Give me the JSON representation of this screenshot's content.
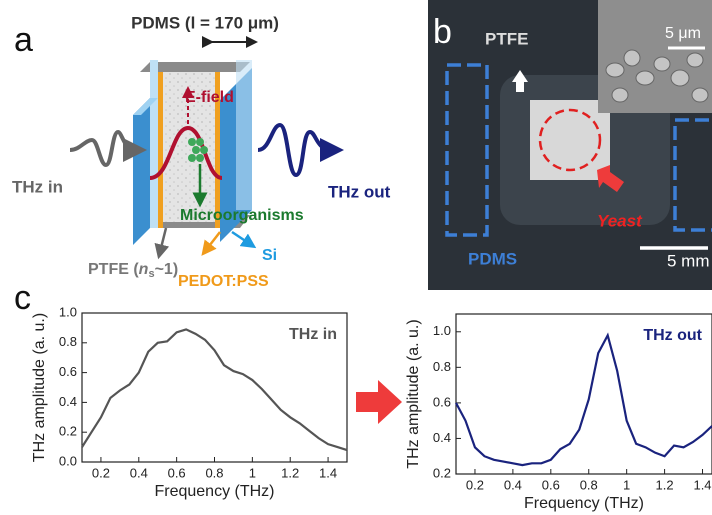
{
  "panel_labels": [
    "a",
    "b",
    "c"
  ],
  "diagram": {
    "pdms": "PDMS (l = 170 μm)",
    "e_field": "E-field",
    "thz_in": "THz in",
    "thz_out": "THz out",
    "microorganisms": "Microorganisms",
    "si": "Si",
    "ptfe": [
      "PTFE (",
      "n",
      "s",
      "~1)"
    ],
    "pedot": "PEDOT:PSS"
  },
  "photo": {
    "ptfe": "PTFE",
    "scale_inset": "5 μm",
    "yeast": "Yeast",
    "pdms": "PDMS",
    "scale": "5 mm"
  },
  "chart_data": [
    {
      "type": "line",
      "x_label": "Frequency (THz)",
      "y_label": "THz amplitude (a. u.)",
      "x": [
        0.1,
        0.15,
        0.2,
        0.25,
        0.3,
        0.35,
        0.4,
        0.45,
        0.5,
        0.55,
        0.6,
        0.65,
        0.7,
        0.75,
        0.8,
        0.85,
        0.9,
        0.95,
        1.0,
        1.05,
        1.1,
        1.15,
        1.2,
        1.25,
        1.3,
        1.35,
        1.4,
        1.45,
        1.5
      ],
      "series": [
        {
          "name": "THz in",
          "color": "#555555",
          "values": [
            0.1,
            0.2,
            0.3,
            0.43,
            0.48,
            0.52,
            0.6,
            0.74,
            0.8,
            0.81,
            0.87,
            0.89,
            0.86,
            0.82,
            0.75,
            0.65,
            0.61,
            0.59,
            0.55,
            0.49,
            0.42,
            0.35,
            0.3,
            0.26,
            0.21,
            0.16,
            0.12,
            0.1,
            0.08
          ]
        }
      ],
      "xlim": [
        0.1,
        1.5
      ],
      "xticks": [
        0.2,
        0.4,
        0.6,
        0.8,
        1.0,
        1.2,
        1.4
      ],
      "ylim": [
        0,
        1.0
      ],
      "yticks": [
        {
          "value": 0,
          "label": "0.0"
        },
        0.2,
        0.4,
        0.6,
        0.8,
        {
          "value": 1.0,
          "label": "1.0"
        }
      ]
    },
    {
      "type": "line",
      "x_label": "Frequency (THz)",
      "y_label": "THz amplitude (a. u.)",
      "x": [
        0.1,
        0.15,
        0.2,
        0.25,
        0.3,
        0.35,
        0.4,
        0.45,
        0.5,
        0.55,
        0.6,
        0.65,
        0.7,
        0.75,
        0.8,
        0.85,
        0.9,
        0.95,
        1.0,
        1.05,
        1.1,
        1.15,
        1.2,
        1.25,
        1.3,
        1.35,
        1.4,
        1.45
      ],
      "series": [
        {
          "name": "THz out",
          "color": "#1a237e",
          "values": [
            0.6,
            0.5,
            0.35,
            0.3,
            0.28,
            0.27,
            0.26,
            0.25,
            0.26,
            0.26,
            0.28,
            0.34,
            0.37,
            0.45,
            0.62,
            0.88,
            0.98,
            0.78,
            0.5,
            0.37,
            0.35,
            0.32,
            0.3,
            0.36,
            0.35,
            0.38,
            0.42,
            0.47
          ]
        }
      ],
      "xlim": [
        0.1,
        1.45
      ],
      "xticks": [
        0.2,
        0.4,
        0.6,
        0.8,
        1.0,
        1.2,
        1.4
      ],
      "ylim": [
        0.2,
        1.1
      ],
      "yticks": [
        0.2,
        0.4,
        0.6,
        0.8,
        {
          "value": 1.0,
          "label": "1.0"
        }
      ]
    }
  ]
}
